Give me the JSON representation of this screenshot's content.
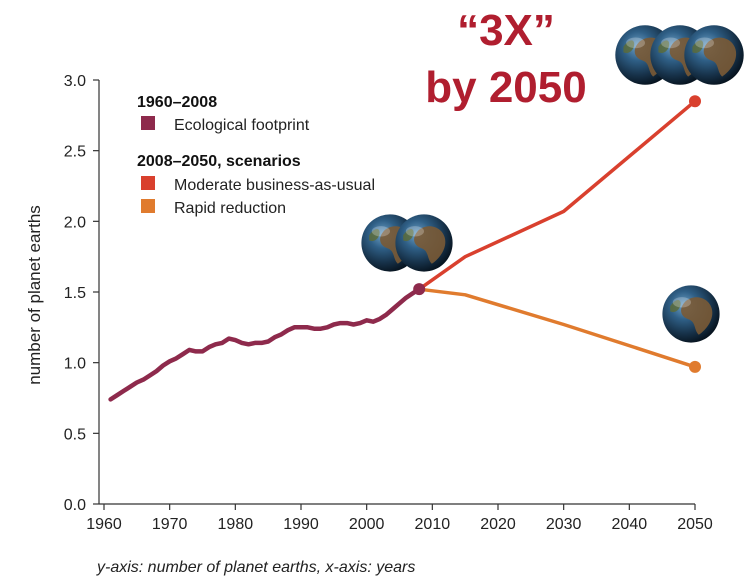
{
  "callout": {
    "line1": "“3X”",
    "line2": "by 2050"
  },
  "caption": "y-axis: number of planet earths, x-axis: years",
  "colors": {
    "historical": "#8e2a4c",
    "moderate": "#d9402e",
    "rapid": "#e07b2e",
    "callout": "#b01e2f",
    "axis": "#333333"
  },
  "icons": [
    "earth-globe-icon"
  ],
  "chart_data": {
    "type": "line",
    "title": "",
    "xlabel": "",
    "ylabel": "number of planet earths",
    "xlim": [
      1960,
      2050
    ],
    "ylim": [
      0,
      3.0
    ],
    "xticks": [
      "1960",
      "1970",
      "1980",
      "1990",
      "2000",
      "2010",
      "2020",
      "2030",
      "2040",
      "2050"
    ],
    "yticks": [
      "0.0",
      "0.5",
      "1.0",
      "1.5",
      "2.0",
      "2.5",
      "3.0"
    ],
    "grid": false,
    "legend": {
      "placement": "top-left",
      "groups": [
        {
          "heading": "1960–2008",
          "entries": [
            "Ecological footprint"
          ]
        },
        {
          "heading": "2008–2050, scenarios",
          "entries": [
            "Moderate business-as-usual",
            "Rapid reduction"
          ]
        }
      ]
    },
    "series": [
      {
        "name": "Ecological footprint",
        "x": [
          1961,
          1962,
          1963,
          1964,
          1965,
          1966,
          1967,
          1968,
          1969,
          1970,
          1971,
          1972,
          1973,
          1974,
          1975,
          1976,
          1977,
          1978,
          1979,
          1980,
          1981,
          1982,
          1983,
          1984,
          1985,
          1986,
          1987,
          1988,
          1989,
          1990,
          1991,
          1992,
          1993,
          1994,
          1995,
          1996,
          1997,
          1998,
          1999,
          2000,
          2001,
          2002,
          2003,
          2004,
          2005,
          2006,
          2007,
          2008
        ],
        "y": [
          0.74,
          0.77,
          0.8,
          0.83,
          0.86,
          0.88,
          0.91,
          0.94,
          0.98,
          1.01,
          1.03,
          1.06,
          1.09,
          1.08,
          1.08,
          1.11,
          1.13,
          1.14,
          1.17,
          1.16,
          1.14,
          1.13,
          1.14,
          1.14,
          1.15,
          1.18,
          1.2,
          1.23,
          1.25,
          1.25,
          1.25,
          1.24,
          1.24,
          1.25,
          1.27,
          1.28,
          1.28,
          1.27,
          1.28,
          1.3,
          1.29,
          1.31,
          1.34,
          1.38,
          1.42,
          1.46,
          1.49,
          1.52
        ]
      },
      {
        "name": "Moderate business-as-usual",
        "x": [
          2008,
          2015,
          2030,
          2050
        ],
        "y": [
          1.52,
          1.75,
          2.07,
          2.85
        ]
      },
      {
        "name": "Rapid reduction",
        "x": [
          2008,
          2015,
          2030,
          2050
        ],
        "y": [
          1.52,
          1.48,
          1.27,
          0.97
        ]
      }
    ]
  }
}
